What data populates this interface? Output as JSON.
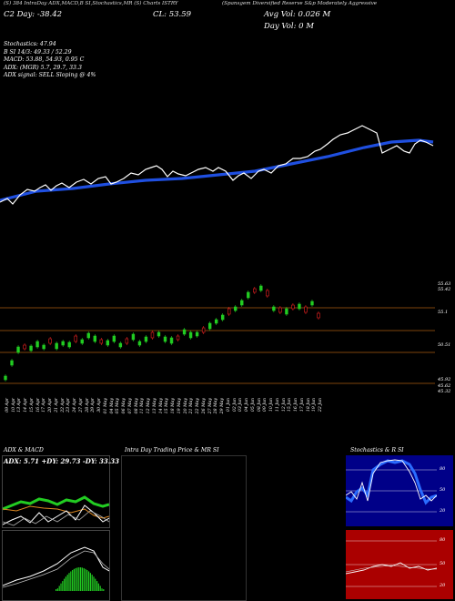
{
  "header": {
    "line1": "(S) 384 IntraDay ADX,MACD,B      SI,Stochastics,MR      (S) Charts ISTRY",
    "line1b": "(Spansgem Diversified Reserve S&p Moderately Aggressive",
    "line2_day": "C2  Day: -38.42",
    "close_label": "CL: 53.59",
    "avg_vol": "Avg Vol: 0.026   M",
    "day_vol": "Day Vol: 0   M",
    "indicators": [
      "Stochastics: 47.94",
      "B     SI 14/3: 49.33 / 52.29",
      "MACD: 53.88, 54.93, 0.95 C",
      "",
      "ADX:                        (MGR) 5.7, 29.7,  33.3",
      "ADX  signal: SELL  Sloping @ 4%"
    ]
  },
  "price_panel": {
    "y_labels": [
      "55.63",
      "55.42",
      "55.1",
      "50.51",
      "45.92",
      "45.62",
      "45.32"
    ],
    "x_labels": [
      "09 Apr",
      "10 Apr",
      "13 Apr",
      "14 Apr",
      "15 Apr",
      "16 Apr",
      "17 Apr",
      "20 Apr",
      "21 Apr",
      "22 Apr",
      "23 Apr",
      "24 Apr",
      "27 Apr",
      "28 Apr",
      "29 Apr",
      "30 Apr",
      "01 May",
      "04 May",
      "05 May",
      "06 May",
      "07 May",
      "08 May",
      "11 May",
      "12 May",
      "13 May",
      "14 May",
      "15 May",
      "18 May",
      "19 May",
      "20 May",
      "21 May",
      "22 May",
      "26 May",
      "27 May",
      "28 May",
      "29 May",
      "01 Jun",
      "02 Jun",
      "03 Jun",
      "04 Jun",
      "05 Jun",
      "08 Jun",
      "09 Jun",
      "10 Jun",
      "11 Jun",
      "12 Jun",
      "15 Jun",
      "16 Jun",
      "17 Jun",
      "18 Jun",
      "19 Jun",
      "22 Jun"
    ]
  },
  "bottom_panels": {
    "adx_title": "ADX  & MACD",
    "adx_values": "ADX: 5.71  +DY: 29.73  -DY: 33.33",
    "intraday_title": "Intra  Day Trading Price  & MR                SI",
    "stoch_title": "Stochastics & R                SI",
    "stoch_labels": [
      "80",
      "50",
      "20"
    ],
    "rsi_labels": [
      "80",
      "50",
      "20"
    ]
  },
  "colors": {
    "background": "#000000",
    "ma_line": "#1f4fe0",
    "price_line": "#ffffff",
    "bull_candle": "#22cc22",
    "bear_candle": "#ee2222",
    "level_line": "#a85a10",
    "stoch_bg": "#000088",
    "rsi_bg": "#aa0000"
  }
}
